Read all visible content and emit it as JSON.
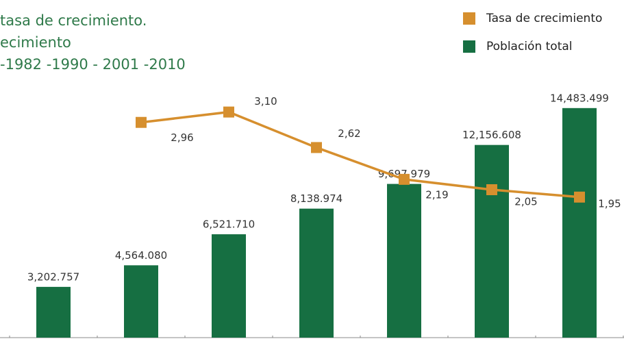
{
  "chart_data": {
    "type": "bar",
    "title_lines": [
      "tasa de crecimiento.",
      "ecimiento",
      "-1982 -1990 - 2001 -2010"
    ],
    "categories": [
      null,
      null,
      null,
      null,
      null,
      null,
      null
    ],
    "ylim": [
      0,
      21000000
    ],
    "y2lim": [
      0.05,
      4.55
    ],
    "legend": "top-right",
    "series": [
      {
        "name": "Tasa de crecimiento",
        "type": "line",
        "axis": "y2",
        "color": "#d68f2e",
        "values": [
          null,
          2.96,
          3.1,
          2.62,
          2.19,
          2.05,
          1.95
        ],
        "value_labels": [
          null,
          "2,96",
          "3,10",
          "2,62",
          "2,19",
          "2,05",
          "1,95"
        ]
      },
      {
        "name": "Población total",
        "type": "bar",
        "color": "#166f42",
        "values": [
          3202757,
          4564080,
          6521710,
          8138974,
          9697979,
          12156608,
          14483499
        ],
        "value_labels": [
          "3,202.757",
          "4,564.080",
          "6,521.710",
          "8,138.974",
          "9,697.979",
          "12,156.608",
          "14,483.499"
        ]
      }
    ]
  }
}
